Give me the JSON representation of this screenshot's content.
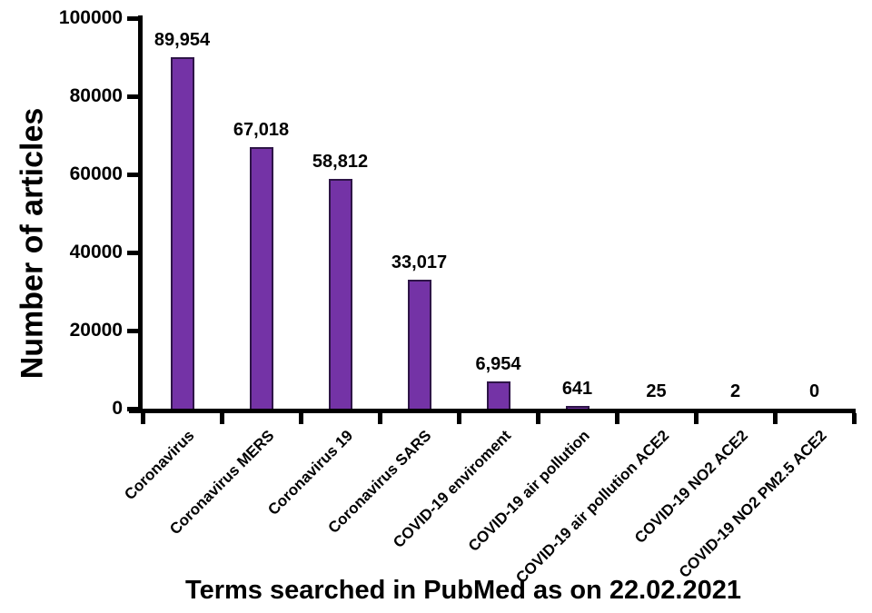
{
  "chart_data": {
    "type": "bar",
    "title": "",
    "xlabel": "Terms searched in PubMed as on 22.02.2021",
    "ylabel": "Number of articles",
    "categories": [
      "Coronavirus",
      "Coronavirus MERS",
      "Coronavirus 19",
      "Coronavirus SARS",
      "COVID-19 enviroment",
      "COVID-19 air pollution",
      "COVID-19 air pollution ACE2",
      "COVID-19 NO2 ACE2",
      "COVID-19 NO2 PM2.5 ACE2"
    ],
    "values": [
      89954,
      67018,
      58812,
      33017,
      6954,
      641,
      25,
      2,
      0
    ],
    "value_labels": [
      "89,954",
      "67,018",
      "58,812",
      "33,017",
      "6,954",
      "641",
      "25",
      "2",
      "0"
    ],
    "ylim": [
      0,
      100000
    ],
    "yticks": [
      0,
      20000,
      40000,
      60000,
      80000,
      100000
    ],
    "ytick_labels": [
      "0",
      "20000",
      "40000",
      "60000",
      "80000",
      "100000"
    ],
    "grid": false,
    "legend": null,
    "colors": {
      "bar_fill": "#7433A6",
      "bar_border": "#2E1547",
      "axis": "#000000",
      "text": "#000000",
      "background": "#ffffff"
    }
  }
}
